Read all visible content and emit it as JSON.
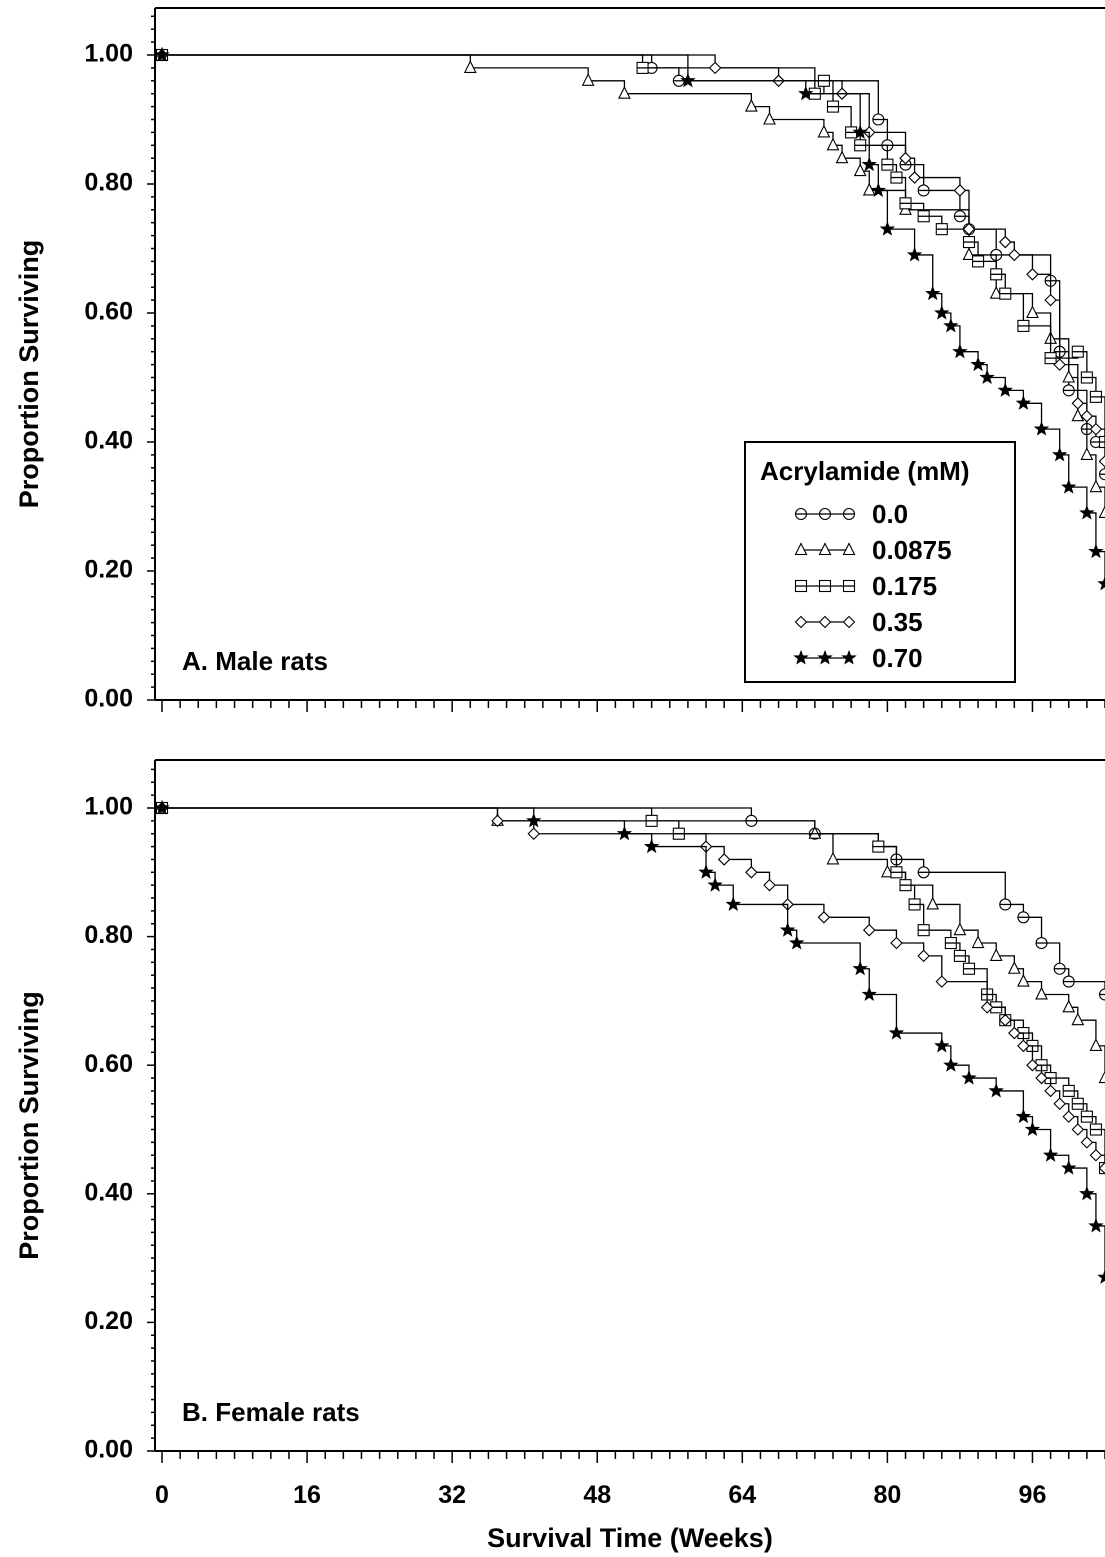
{
  "chart_data": [
    {
      "type": "line",
      "step": true,
      "panel_label": "A.  Male rats",
      "xlabel": "",
      "ylabel": "Proportion Surviving",
      "xlim": [
        0,
        104
      ],
      "ylim": [
        0,
        1.06
      ],
      "yticks": [
        "0.00",
        "0.20",
        "0.40",
        "0.60",
        "0.80",
        "1.00"
      ],
      "xticks": [],
      "legend": {
        "title": "Acrylamide (mM)",
        "position": "bottom-right"
      },
      "series": [
        {
          "name": "0.0",
          "marker": "circle",
          "x": [
            0,
            54,
            57,
            79,
            80,
            82,
            84,
            88,
            89,
            92,
            98,
            99,
            100,
            102,
            103,
            104
          ],
          "y": [
            1.0,
            0.98,
            0.96,
            0.9,
            0.86,
            0.83,
            0.79,
            0.75,
            0.73,
            0.69,
            0.65,
            0.54,
            0.48,
            0.42,
            0.4,
            0.35
          ]
        },
        {
          "name": "0.0875",
          "marker": "triangle",
          "x": [
            0,
            34,
            47,
            51,
            65,
            67,
            73,
            74,
            75,
            77,
            78,
            82,
            89,
            92,
            96,
            98,
            100,
            101,
            102,
            103,
            104
          ],
          "y": [
            1.0,
            0.98,
            0.96,
            0.94,
            0.92,
            0.9,
            0.88,
            0.86,
            0.84,
            0.82,
            0.79,
            0.76,
            0.69,
            0.63,
            0.6,
            0.56,
            0.5,
            0.44,
            0.38,
            0.33,
            0.29
          ]
        },
        {
          "name": "0.175",
          "marker": "square",
          "x": [
            0,
            53,
            72,
            73,
            74,
            76,
            77,
            80,
            81,
            82,
            84,
            86,
            89,
            90,
            92,
            93,
            95,
            98,
            101,
            102,
            103,
            104
          ],
          "y": [
            1.0,
            0.98,
            0.94,
            0.96,
            0.92,
            0.88,
            0.86,
            0.83,
            0.81,
            0.77,
            0.75,
            0.73,
            0.71,
            0.68,
            0.66,
            0.63,
            0.58,
            0.53,
            0.54,
            0.5,
            0.47,
            0.4
          ]
        },
        {
          "name": "0.35",
          "marker": "diamond",
          "x": [
            0,
            61,
            68,
            75,
            78,
            82,
            83,
            88,
            89,
            93,
            94,
            96,
            98,
            99,
            101,
            102,
            103,
            104
          ],
          "y": [
            1.0,
            0.98,
            0.96,
            0.94,
            0.88,
            0.84,
            0.81,
            0.79,
            0.73,
            0.71,
            0.69,
            0.66,
            0.62,
            0.52,
            0.46,
            0.44,
            0.42,
            0.37
          ]
        },
        {
          "name": "0.70",
          "marker": "star",
          "x": [
            0,
            58,
            71,
            77,
            78,
            79,
            80,
            83,
            85,
            86,
            87,
            88,
            90,
            91,
            93,
            95,
            97,
            99,
            100,
            102,
            103,
            104
          ],
          "y": [
            1.0,
            0.96,
            0.94,
            0.88,
            0.83,
            0.79,
            0.73,
            0.69,
            0.63,
            0.6,
            0.58,
            0.54,
            0.52,
            0.5,
            0.48,
            0.46,
            0.42,
            0.38,
            0.33,
            0.29,
            0.23,
            0.18
          ]
        }
      ]
    },
    {
      "type": "line",
      "step": true,
      "panel_label": "B.  Female rats",
      "xlabel": "Survival Time (Weeks)",
      "ylabel": "Proportion Surviving",
      "xlim": [
        0,
        104
      ],
      "ylim": [
        0,
        1.06
      ],
      "yticks": [
        "0.00",
        "0.20",
        "0.40",
        "0.60",
        "0.80",
        "1.00"
      ],
      "xticks": [
        "0",
        "16",
        "32",
        "48",
        "64",
        "80",
        "96"
      ],
      "series": [
        {
          "name": "0.0",
          "marker": "circle",
          "x": [
            0,
            65,
            72,
            79,
            81,
            84,
            93,
            95,
            97,
            99,
            100,
            104
          ],
          "y": [
            1.0,
            0.98,
            0.96,
            0.94,
            0.92,
            0.9,
            0.85,
            0.83,
            0.79,
            0.75,
            0.73,
            0.71
          ]
        },
        {
          "name": "0.0875",
          "marker": "triangle",
          "x": [
            0,
            37,
            72,
            74,
            80,
            82,
            85,
            88,
            90,
            92,
            94,
            95,
            97,
            100,
            101,
            103,
            104
          ],
          "y": [
            1.0,
            0.98,
            0.96,
            0.92,
            0.9,
            0.88,
            0.85,
            0.81,
            0.79,
            0.77,
            0.75,
            0.73,
            0.71,
            0.69,
            0.67,
            0.63,
            0.58
          ]
        },
        {
          "name": "0.175",
          "marker": "square",
          "x": [
            0,
            54,
            57,
            79,
            81,
            82,
            83,
            84,
            87,
            88,
            89,
            91,
            92,
            93,
            95,
            96,
            97,
            98,
            100,
            101,
            102,
            103,
            104
          ],
          "y": [
            1.0,
            0.98,
            0.96,
            0.94,
            0.9,
            0.88,
            0.85,
            0.81,
            0.79,
            0.77,
            0.75,
            0.71,
            0.69,
            0.67,
            0.65,
            0.63,
            0.6,
            0.58,
            0.56,
            0.54,
            0.52,
            0.5,
            0.44
          ]
        },
        {
          "name": "0.35",
          "marker": "diamond",
          "x": [
            0,
            37,
            41,
            60,
            62,
            65,
            67,
            69,
            73,
            78,
            81,
            84,
            86,
            91,
            93,
            94,
            95,
            96,
            97,
            98,
            99,
            100,
            101,
            102,
            103,
            104
          ],
          "y": [
            1.0,
            0.98,
            0.96,
            0.94,
            0.92,
            0.9,
            0.88,
            0.85,
            0.83,
            0.81,
            0.79,
            0.77,
            0.73,
            0.69,
            0.67,
            0.65,
            0.63,
            0.6,
            0.58,
            0.56,
            0.54,
            0.52,
            0.5,
            0.48,
            0.46,
            0.44
          ]
        },
        {
          "name": "0.70",
          "marker": "star",
          "x": [
            0,
            41,
            51,
            54,
            60,
            61,
            63,
            69,
            70,
            77,
            78,
            81,
            86,
            87,
            89,
            92,
            95,
            96,
            98,
            100,
            102,
            103,
            104
          ],
          "y": [
            1.0,
            0.98,
            0.96,
            0.94,
            0.9,
            0.88,
            0.85,
            0.81,
            0.79,
            0.75,
            0.71,
            0.65,
            0.63,
            0.6,
            0.58,
            0.56,
            0.52,
            0.5,
            0.46,
            0.44,
            0.4,
            0.35,
            0.27
          ]
        }
      ]
    }
  ]
}
